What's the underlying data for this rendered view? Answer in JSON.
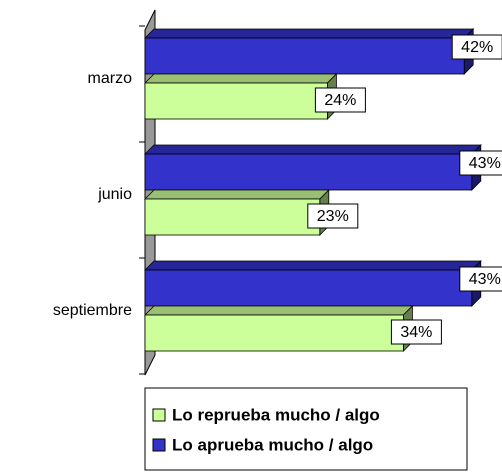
{
  "chart_data": {
    "type": "bar",
    "orientation": "horizontal",
    "three_d": true,
    "categories": [
      "marzo",
      "junio",
      "septiembre"
    ],
    "series": [
      {
        "name": "Lo aprueba mucho / algo",
        "color": "#3333cc",
        "values": [
          42,
          43,
          43
        ],
        "value_labels": [
          "42%",
          "43%",
          "43%"
        ]
      },
      {
        "name": "Lo reprueba mucho / algo",
        "color": "#ccff99",
        "values": [
          24,
          23,
          34
        ],
        "value_labels": [
          "24%",
          "23%",
          "34%"
        ]
      }
    ],
    "legend": "bottom"
  }
}
